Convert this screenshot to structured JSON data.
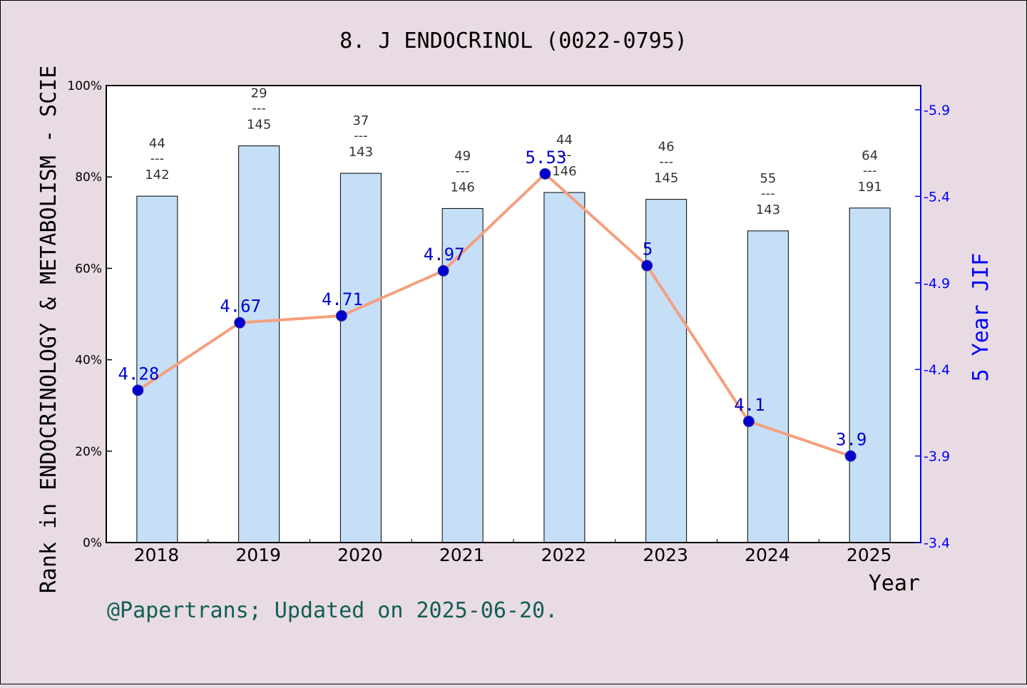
{
  "chart_data": {
    "type": "bar+line",
    "title": "8. J ENDOCRINOL (0022-0795)",
    "xlabel": "Year",
    "ylabel": "Rank in ENDOCRINOLOGY & METABOLISM - SCIE",
    "y2label": "5 Year JIF",
    "footer": "@Papertrans; Updated on 2025-06-20.",
    "categories": [
      "2018",
      "2019",
      "2020",
      "2021",
      "2022",
      "2023",
      "2024",
      "2025"
    ],
    "ylim": [
      0,
      100
    ],
    "y_ticks": [
      "0%",
      "20%",
      "40%",
      "60%",
      "80%",
      "100%"
    ],
    "y2lim": [
      3.4,
      6.04
    ],
    "y2_ticks": [
      "3.4",
      "3.9",
      "4.4",
      "4.9",
      "5.4",
      "5.9"
    ],
    "bars": {
      "values": [
        75.8,
        86.8,
        80.8,
        73.1,
        76.6,
        75.1,
        68.2,
        73.2
      ],
      "ranks": [
        {
          "rank": "44",
          "total": "142"
        },
        {
          "rank": "29",
          "total": "145"
        },
        {
          "rank": "37",
          "total": "143"
        },
        {
          "rank": "49",
          "total": "146"
        },
        {
          "rank": "44",
          "total": "146"
        },
        {
          "rank": "46",
          "total": "145"
        },
        {
          "rank": "55",
          "total": "143"
        },
        {
          "rank": "64",
          "total": "191"
        }
      ],
      "separator": "---",
      "color": "#c5dff7"
    },
    "line": {
      "values": [
        4.28,
        4.67,
        4.71,
        4.97,
        5.53,
        5.0,
        4.1,
        3.9
      ],
      "labels": [
        "4.28",
        "4.67",
        "4.71",
        "4.97",
        "5.53",
        "5",
        "4.1",
        "3.9"
      ],
      "color": "#f4a07e",
      "marker_color": "#0000cc"
    },
    "grid": false
  }
}
